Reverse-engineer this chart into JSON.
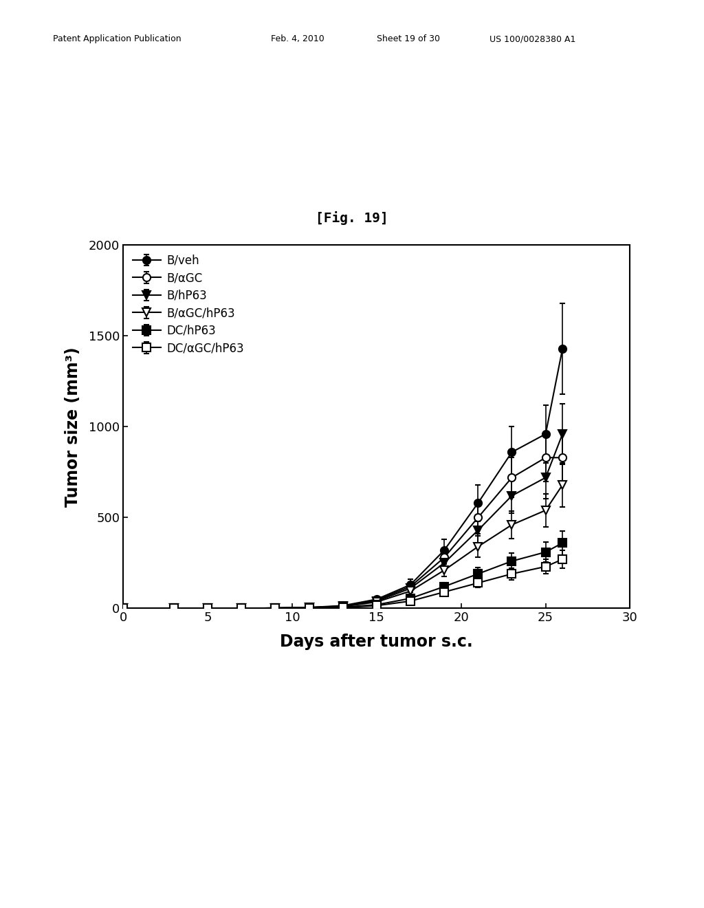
{
  "title": "[Fig. 19]",
  "xlabel": "Days after tumor s.c.",
  "ylabel": "Tumor size (mm³)",
  "xlim": [
    0,
    30
  ],
  "ylim": [
    0,
    2000
  ],
  "xticks": [
    0,
    5,
    10,
    15,
    20,
    25,
    30
  ],
  "yticks": [
    0,
    500,
    1000,
    1500,
    2000
  ],
  "series": [
    {
      "label": "B/veh",
      "marker": "o",
      "fillstyle": "full",
      "x": [
        0,
        3,
        5,
        7,
        9,
        11,
        13,
        15,
        17,
        19,
        21,
        23,
        25,
        26
      ],
      "y": [
        0,
        0,
        0,
        0,
        2,
        5,
        15,
        50,
        130,
        320,
        580,
        860,
        960,
        1430
      ],
      "yerr": [
        0,
        0,
        0,
        0,
        1,
        2,
        4,
        10,
        30,
        60,
        100,
        140,
        160,
        250
      ]
    },
    {
      "label": "B/αGC",
      "marker": "o",
      "fillstyle": "none",
      "x": [
        0,
        3,
        5,
        7,
        9,
        11,
        13,
        15,
        17,
        19,
        21,
        23,
        25,
        26
      ],
      "y": [
        0,
        0,
        0,
        0,
        2,
        5,
        12,
        45,
        120,
        280,
        500,
        720,
        830,
        830
      ],
      "yerr": [
        0,
        0,
        0,
        0,
        1,
        2,
        3,
        9,
        25,
        50,
        90,
        110,
        130,
        140
      ]
    },
    {
      "label": "B/hP63",
      "marker": "v",
      "fillstyle": "full",
      "x": [
        0,
        3,
        5,
        7,
        9,
        11,
        13,
        15,
        17,
        19,
        21,
        23,
        25,
        26
      ],
      "y": [
        0,
        0,
        0,
        0,
        2,
        4,
        12,
        40,
        110,
        250,
        430,
        620,
        720,
        960
      ],
      "yerr": [
        0,
        0,
        0,
        0,
        1,
        1,
        3,
        8,
        22,
        42,
        75,
        95,
        115,
        165
      ]
    },
    {
      "label": "B/αGC/hP63",
      "marker": "v",
      "fillstyle": "none",
      "x": [
        0,
        3,
        5,
        7,
        9,
        11,
        13,
        15,
        17,
        19,
        21,
        23,
        25,
        26
      ],
      "y": [
        0,
        0,
        0,
        0,
        2,
        4,
        10,
        35,
        95,
        210,
        340,
        460,
        540,
        680
      ],
      "yerr": [
        0,
        0,
        0,
        0,
        1,
        1,
        2,
        7,
        18,
        35,
        60,
        75,
        90,
        120
      ]
    },
    {
      "label": "DC/hP63",
      "marker": "s",
      "fillstyle": "full",
      "x": [
        0,
        3,
        5,
        7,
        9,
        11,
        13,
        15,
        17,
        19,
        21,
        23,
        25,
        26
      ],
      "y": [
        0,
        0,
        0,
        0,
        1,
        2,
        6,
        20,
        55,
        120,
        190,
        260,
        310,
        360
      ],
      "yerr": [
        0,
        0,
        0,
        0,
        0,
        1,
        1,
        4,
        12,
        22,
        35,
        45,
        55,
        65
      ]
    },
    {
      "label": "DC/αGC/hP63",
      "marker": "s",
      "fillstyle": "none",
      "x": [
        0,
        3,
        5,
        7,
        9,
        11,
        13,
        15,
        17,
        19,
        21,
        23,
        25,
        26
      ],
      "y": [
        0,
        0,
        0,
        0,
        1,
        2,
        5,
        15,
        40,
        90,
        140,
        190,
        230,
        270
      ],
      "yerr": [
        0,
        0,
        0,
        0,
        0,
        1,
        1,
        3,
        8,
        16,
        25,
        32,
        40,
        50
      ]
    }
  ],
  "background_color": "#ffffff",
  "title_fontsize": 14,
  "axis_label_fontsize": 17,
  "tick_fontsize": 13,
  "legend_fontsize": 12,
  "header_left": "Patent Application Publication",
  "header_mid1": "Feb. 4, 2010",
  "header_mid2": "Sheet 19 of 30",
  "header_right": "US 100/0028380 A1"
}
